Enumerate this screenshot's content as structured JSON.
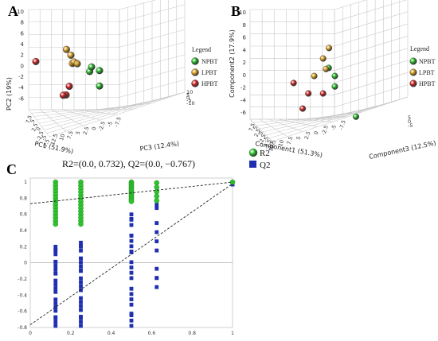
{
  "panels": {
    "a": {
      "letter": "A"
    },
    "b": {
      "letter": "B"
    },
    "c": {
      "letter": "C"
    }
  },
  "colors": {
    "NPBT": "#22b722",
    "LPBT": "#d49a1a",
    "HPBT": "#cc1f1f",
    "R2": "#2ec42e",
    "Q2": "#1f2fb0",
    "grid": "#c8c8c8"
  },
  "chart_data": [
    {
      "type": "scatter",
      "panel": "A",
      "xlabel": "PC1 (51.9%)",
      "ylabel": "PC2 (19%)",
      "zlabel": "PC3 (12.4%)",
      "yticks": [
        "10",
        "8",
        "6",
        "4",
        "2",
        "0",
        "-2",
        "-4",
        "-6"
      ],
      "xticks": [
        "7.5",
        "5",
        "2.5",
        "0",
        "-2.5",
        "-5",
        "-7.5"
      ],
      "zticks": [
        "12.5",
        "10",
        "7.5",
        "5",
        "2.5",
        "0",
        "-2.5",
        "-5",
        "-7.5"
      ],
      "zticks2": [
        "10",
        "5",
        "0",
        "-5",
        "-10"
      ],
      "legend": {
        "title": "Legend",
        "items": [
          "NPBT",
          "LPBT",
          "HPBT"
        ]
      },
      "series": [
        {
          "name": "NPBT",
          "points": [
            [
              1.7,
              0.7,
              -1
            ],
            [
              2.0,
              1.5,
              -1
            ],
            [
              2.5,
              0.3,
              0
            ],
            [
              1.0,
              -3.5,
              2
            ]
          ]
        },
        {
          "name": "LPBT",
          "points": [
            [
              -2.5,
              1.0,
              1
            ],
            [
              -2.0,
              3.0,
              0
            ],
            [
              -1.5,
              1.8,
              0
            ],
            [
              -1.0,
              1.5,
              0
            ],
            [
              -2.7,
              4.0,
              0
            ]
          ]
        },
        {
          "name": "HPBT",
          "points": [
            [
              -6.0,
              3.0,
              -2
            ],
            [
              -3.0,
              -3.0,
              1
            ],
            [
              -3.5,
              -4.5,
              1
            ],
            [
              -3.2,
              -4.0,
              0
            ]
          ]
        }
      ]
    },
    {
      "type": "scatter",
      "panel": "B",
      "xlabel": "Component1 (51.3%)",
      "ylabel": "Component2 (17.9%)",
      "zlabel": "Component3 (12.5%)",
      "yticks": [
        "10",
        "8",
        "6",
        "4",
        "2",
        "0",
        "-2",
        "-4",
        "-6"
      ],
      "xticks": [
        "7.5",
        "5",
        "2.5",
        "0",
        "-2.5",
        "-5",
        "-7.5",
        "-10"
      ],
      "zticks": [
        "12.5",
        "10",
        "7.5",
        "5",
        "2.5",
        "0",
        "-2.5",
        "-5",
        "-7.5"
      ],
      "zticks2": [
        "5",
        "0",
        "-5"
      ],
      "legend": {
        "title": "Legend",
        "items": [
          "NPBT",
          "LPBT",
          "HPBT"
        ]
      },
      "series": [
        {
          "name": "NPBT",
          "points": [
            [
              2.0,
              2.0,
              -1
            ],
            [
              2.5,
              0.5,
              0
            ],
            [
              2.5,
              -1.0,
              0
            ],
            [
              5.0,
              -6.0,
              2
            ]
          ]
        },
        {
          "name": "LPBT",
          "points": [
            [
              -1.0,
              0.5,
              0
            ],
            [
              0.5,
              3.0,
              0
            ],
            [
              1.5,
              4.5,
              0
            ],
            [
              1.0,
              1.5,
              0
            ]
          ]
        },
        {
          "name": "HPBT",
          "points": [
            [
              -4.5,
              -0.5,
              0
            ],
            [
              -2.0,
              -2.0,
              0
            ],
            [
              0.5,
              -2.0,
              0
            ],
            [
              -3.5,
              -4.5,
              1
            ]
          ]
        }
      ]
    },
    {
      "type": "scatter",
      "panel": "C",
      "title": "R2=(0.0, 0.732), Q2=(0.0,       −0.767)",
      "legend": {
        "items": [
          "R2",
          "Q2"
        ]
      },
      "xticks": [
        "0",
        "0.2",
        "0.4",
        "0.6",
        "0.8",
        "1"
      ],
      "yticks": [
        "1",
        "0.8",
        "0.6",
        "0.4",
        "0.2",
        "0",
        "-0.2",
        "-0.4",
        "-0.6",
        "-0.8"
      ],
      "xlim": [
        0,
        1
      ],
      "ylim": [
        -0.8,
        1.05
      ],
      "grid": false,
      "series": [
        {
          "name": "R2",
          "x": [
            0.125,
            0.25,
            0.5,
            0.625,
            1.0
          ],
          "y_ranges": [
            [
              0.48,
              1.0
            ],
            [
              0.48,
              1.0
            ],
            [
              0.76,
              1.0
            ],
            [
              0.77,
              0.99
            ],
            [
              0.99,
              1.0
            ]
          ],
          "regression": [
            [
              0,
              0.732
            ],
            [
              1,
              1.0
            ]
          ]
        },
        {
          "name": "Q2",
          "x": [
            0.125,
            0.25,
            0.5,
            0.625,
            1.0
          ],
          "y_ranges": [
            [
              -0.78,
              0.2
            ],
            [
              -0.78,
              0.25
            ],
            [
              -0.78,
              0.6
            ],
            [
              -0.3,
              0.72
            ],
            [
              0.97,
              0.98
            ]
          ],
          "regression": [
            [
              0,
              -0.767
            ],
            [
              1,
              0.98
            ]
          ]
        }
      ]
    }
  ]
}
